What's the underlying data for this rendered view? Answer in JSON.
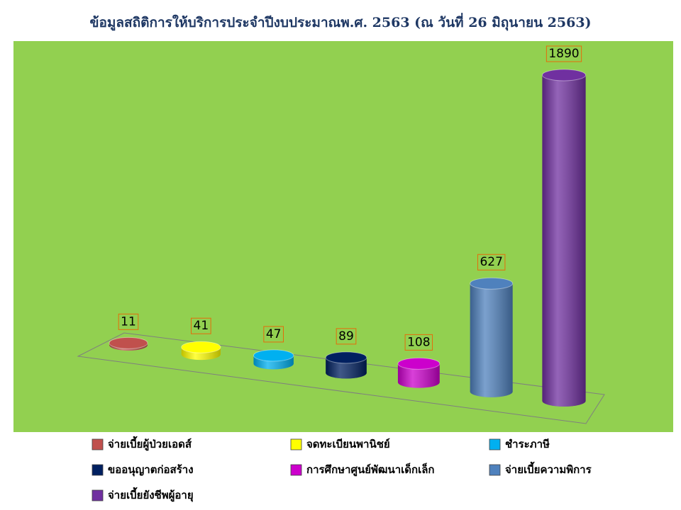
{
  "chart_data": {
    "type": "bar",
    "title": "ข้อมูลสถิติการให้บริการประจำปีงบประมาณพ.ศ.  2563 (ณ วันที่ 26 มิถุนายน 2563)",
    "categories": [
      "จ่ายเบี้ยผู้ป่วยเอดส์",
      "จดทะเบียนพานิชย์",
      "ชำระภาษี",
      "ขออนุญาตก่อสร้าง",
      "การศึกษาศูนย์พัฒนาเด็กเล็ก",
      "จ่ายเบี้ยความพิการ",
      "จ่ายเบี้ยยังชีพผู้อายุ"
    ],
    "values": [
      11,
      41,
      47,
      89,
      108,
      627,
      1890
    ],
    "colors": [
      "#c0504d",
      "#ffff00",
      "#00b0f0",
      "#002060",
      "#cc00cc",
      "#4f81bd",
      "#7030a0"
    ]
  }
}
